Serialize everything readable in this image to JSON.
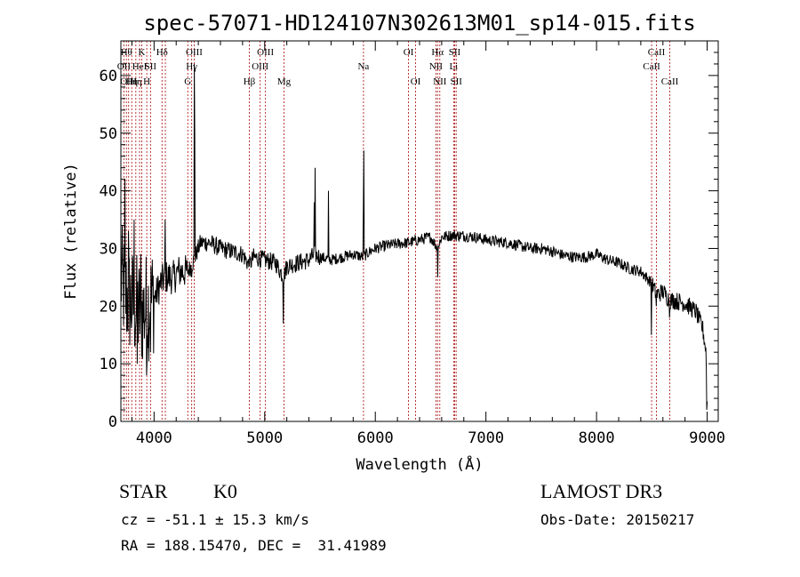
{
  "chart_data": {
    "type": "line",
    "title": "spec-57071-HD124107N302613M01_sp14-015.fits",
    "xlabel": "Wavelength (Å)",
    "ylabel": "Flux (relative)",
    "xlim": [
      3700,
      9100
    ],
    "ylim": [
      0,
      66
    ],
    "xticks": [
      4000,
      5000,
      6000,
      7000,
      8000,
      9000
    ],
    "yticks": [
      0,
      10,
      20,
      30,
      40,
      50,
      60
    ],
    "grid": false,
    "series": [
      {
        "name": "flux",
        "anchors": [
          [
            3700,
            25
          ],
          [
            3740,
            22
          ],
          [
            3780,
            21
          ],
          [
            3820,
            20
          ],
          [
            3860,
            19
          ],
          [
            3900,
            19
          ],
          [
            3940,
            20
          ],
          [
            3980,
            21
          ],
          [
            4020,
            22
          ],
          [
            4060,
            24
          ],
          [
            4100,
            25
          ],
          [
            4140,
            25
          ],
          [
            4180,
            25
          ],
          [
            4220,
            26
          ],
          [
            4260,
            26
          ],
          [
            4300,
            26
          ],
          [
            4340,
            27
          ],
          [
            4380,
            29
          ],
          [
            4420,
            31
          ],
          [
            4460,
            31
          ],
          [
            4500,
            31
          ],
          [
            4600,
            30
          ],
          [
            4700,
            29.5
          ],
          [
            4800,
            29
          ],
          [
            4860,
            27
          ],
          [
            4900,
            28.5
          ],
          [
            5000,
            28
          ],
          [
            5100,
            27.5
          ],
          [
            5170,
            25
          ],
          [
            5200,
            27
          ],
          [
            5300,
            27.5
          ],
          [
            5400,
            28
          ],
          [
            5450,
            29
          ],
          [
            5500,
            28.5
          ],
          [
            5600,
            28
          ],
          [
            5700,
            28.5
          ],
          [
            5800,
            29
          ],
          [
            5890,
            28.5
          ],
          [
            5950,
            29.5
          ],
          [
            6000,
            30
          ],
          [
            6100,
            30.5
          ],
          [
            6200,
            30.8
          ],
          [
            6300,
            31
          ],
          [
            6400,
            31.5
          ],
          [
            6500,
            32
          ],
          [
            6563,
            30
          ],
          [
            6600,
            32
          ],
          [
            6700,
            32.3
          ],
          [
            6800,
            32.2
          ],
          [
            6900,
            32
          ],
          [
            7000,
            31.5
          ],
          [
            7100,
            31.2
          ],
          [
            7200,
            31
          ],
          [
            7300,
            30.5
          ],
          [
            7400,
            30
          ],
          [
            7500,
            30
          ],
          [
            7600,
            29.5
          ],
          [
            7700,
            28.8
          ],
          [
            7800,
            28.5
          ],
          [
            7900,
            28.5
          ],
          [
            8000,
            29
          ],
          [
            8100,
            28
          ],
          [
            8200,
            27.5
          ],
          [
            8300,
            26.5
          ],
          [
            8400,
            26
          ],
          [
            8498,
            24
          ],
          [
            8542,
            22
          ],
          [
            8600,
            22.5
          ],
          [
            8662,
            21
          ],
          [
            8700,
            21
          ],
          [
            8800,
            20.5
          ],
          [
            8900,
            19
          ],
          [
            8960,
            16
          ],
          [
            8990,
            12
          ],
          [
            9000,
            4
          ]
        ],
        "spikes": [
          [
            3735,
            42
          ],
          [
            3770,
            33
          ],
          [
            3820,
            35
          ],
          [
            3850,
            10
          ],
          [
            3880,
            29
          ],
          [
            3934,
            8
          ],
          [
            3968,
            12
          ],
          [
            4102,
            35
          ],
          [
            4340,
            25
          ],
          [
            4364,
            62
          ],
          [
            4370,
            50
          ],
          [
            4861,
            27
          ],
          [
            5170,
            17
          ],
          [
            5450,
            38
          ],
          [
            5458,
            44
          ],
          [
            5578,
            40
          ],
          [
            5892,
            37
          ],
          [
            5896,
            47
          ],
          [
            6563,
            25
          ],
          [
            8498,
            15
          ],
          [
            8542,
            20
          ],
          [
            8662,
            18
          ],
          [
            8995,
            2
          ]
        ]
      }
    ],
    "lines": [
      {
        "x": 3727,
        "label": "OII",
        "row": 1
      },
      {
        "x": 3750,
        "label": "Hθ",
        "row": 0
      },
      {
        "x": 3770,
        "label": "OIII",
        "row": 2
      },
      {
        "x": 3798,
        "label": "Hη",
        "row": 2
      },
      {
        "x": 3835,
        "label": "Hη",
        "row": 2
      },
      {
        "x": 3869,
        "label": "HeI",
        "row": 1
      },
      {
        "x": 3889,
        "label": "K",
        "row": 0
      },
      {
        "x": 3934,
        "label": "H",
        "row": 2
      },
      {
        "x": 3968,
        "label": "SII",
        "row": 1
      },
      {
        "x": 4072,
        "label": "Hδ",
        "row": 0
      },
      {
        "x": 4102,
        "label": "",
        "row": 0
      },
      {
        "x": 4305,
        "label": "G",
        "row": 2
      },
      {
        "x": 4340,
        "label": "Hγ",
        "row": 1
      },
      {
        "x": 4363,
        "label": "OIII",
        "row": 0
      },
      {
        "x": 4861,
        "label": "Hβ",
        "row": 2
      },
      {
        "x": 4959,
        "label": "OIII",
        "row": 1
      },
      {
        "x": 5007,
        "label": "OIII",
        "row": 0
      },
      {
        "x": 5175,
        "label": "Mg",
        "row": 2
      },
      {
        "x": 5893,
        "label": "Na",
        "row": 1
      },
      {
        "x": 6300,
        "label": "OI",
        "row": 0
      },
      {
        "x": 6364,
        "label": "OI",
        "row": 2
      },
      {
        "x": 6548,
        "label": "NII",
        "row": 1
      },
      {
        "x": 6563,
        "label": "Hα",
        "row": 0
      },
      {
        "x": 6583,
        "label": "NII",
        "row": 2
      },
      {
        "x": 6708,
        "label": "Li",
        "row": 1
      },
      {
        "x": 6717,
        "label": "SII",
        "row": 0
      },
      {
        "x": 6731,
        "label": "SII",
        "row": 2
      },
      {
        "x": 8498,
        "label": "CaII",
        "row": 1
      },
      {
        "x": 8542,
        "label": "CaII",
        "row": 0
      },
      {
        "x": 8662,
        "label": "CaII",
        "row": 2
      }
    ]
  },
  "info": {
    "object_class": "STAR",
    "subclass": "K0",
    "survey": "LAMOST DR3",
    "redshift": "cz = -51.1 ± 15.3 km/s",
    "obs_date": "Obs-Date: 20150217",
    "coords": "RA = 188.15470, DEC =  31.41989"
  }
}
